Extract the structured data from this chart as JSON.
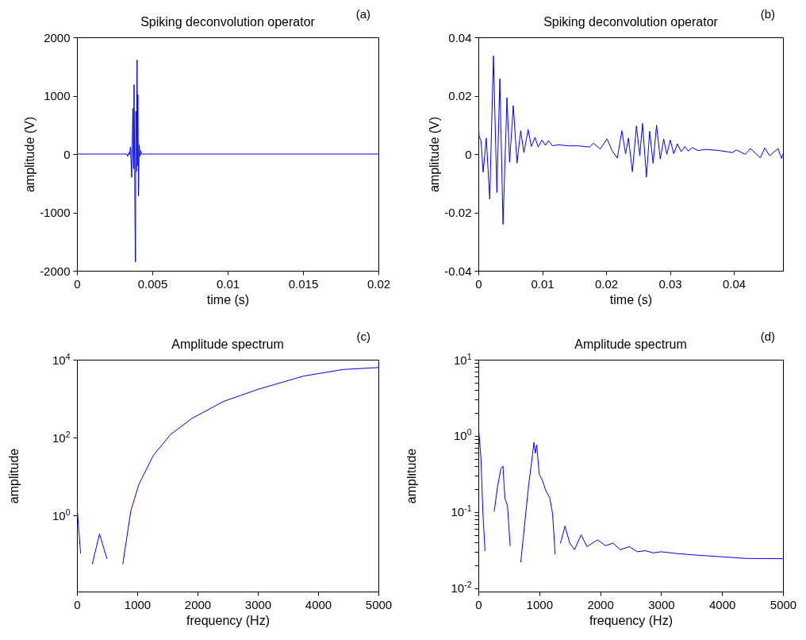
{
  "chart_data": [
    {
      "type": "line",
      "title": "Spiking deconvolution operator",
      "xlabel": "time (s)",
      "ylabel": "amplitude (V)",
      "annotations": [
        "(a)"
      ],
      "x": [
        0,
        0.0033,
        0.00337,
        0.00343,
        0.00349,
        0.00355,
        0.00363,
        0.00371,
        0.00376,
        0.00379,
        0.00385,
        0.00388,
        0.00391,
        0.00394,
        0.00399,
        0.00402,
        0.00404,
        0.00408,
        0.00413,
        0.00418,
        0.00423,
        0.00428,
        0.02
      ],
      "series": [
        {
          "color": "#0000ff",
          "values": [
            0,
            0,
            -40,
            20,
            -10,
            120,
            -400,
            780,
            -250,
            1190,
            -1080,
            -1850,
            730,
            -300,
            1610,
            -200,
            1020,
            -720,
            160,
            -40,
            60,
            0,
            0
          ]
        }
      ],
      "xlim": [
        0,
        0.02
      ],
      "ylim": [
        -2000,
        2000
      ],
      "xticks": [
        0,
        0.005,
        0.01,
        0.015,
        0.02
      ],
      "yticks": [
        -2000,
        -1000,
        0,
        1000,
        2000
      ]
    },
    {
      "type": "line",
      "title": "Spiking deconvolution operator",
      "xlabel": "time (s)",
      "ylabel": "amplitude (V)",
      "annotations": [
        "(b)"
      ],
      "x": [
        0,
        0.00012,
        0.00041,
        0.00075,
        0.00124,
        0.00178,
        0.00236,
        0.0029,
        0.00336,
        0.00386,
        0.00448,
        0.00489,
        0.00547,
        0.00605,
        0.00663,
        0.00713,
        0.00779,
        0.00829,
        0.00887,
        0.00937,
        0.00995,
        0.01049,
        0.01098,
        0.01161,
        0.01244,
        0.01409,
        0.01575,
        0.01741,
        0.01803,
        0.01907,
        0.02015,
        0.02093,
        0.02176,
        0.02247,
        0.02305,
        0.0235,
        0.02412,
        0.02475,
        0.02528,
        0.0257,
        0.02632,
        0.02682,
        0.02736,
        0.0279,
        0.02848,
        0.02902,
        0.02951,
        0.03005,
        0.03059,
        0.03117,
        0.03175,
        0.03233,
        0.03287,
        0.03349,
        0.0344,
        0.03565,
        0.03772,
        0.03979,
        0.04041,
        0.04178,
        0.04261,
        0.04415,
        0.04485,
        0.0456,
        0.04692,
        0.04746,
        0.04767
      ],
      "series": [
        {
          "color": "#0000ff",
          "values": [
            0.0119,
            0.006,
            0.0046,
            -0.0062,
            0.0055,
            -0.0155,
            0.0336,
            -0.0132,
            0.0258,
            -0.0241,
            0.0193,
            -0.0028,
            0.0166,
            -0.0031,
            0.008,
            0.0005,
            0.0084,
            0.0026,
            0.0057,
            0.0024,
            0.0048,
            0.003,
            0.0046,
            0.0028,
            0.0032,
            0.0028,
            0.0028,
            0.0024,
            0.0037,
            0.0017,
            0.0052,
            0.0012,
            -0.0014,
            0.008,
            0.0001,
            0.0055,
            -0.0061,
            0.0096,
            -0.0006,
            0.0105,
            -0.0079,
            0.0078,
            -0.0032,
            0.0099,
            -0.0017,
            0.0051,
            -0.0001,
            0.0048,
            0.0001,
            0.0035,
            0.0008,
            0.0026,
            0.001,
            0.0022,
            0.0012,
            0.0016,
            0.0012,
            0.0005,
            0.0014,
            -0.0001,
            0.0019,
            -0.0013,
            0.0021,
            -0.0006,
            0.0019,
            -0.0015,
            -0.0001
          ]
        }
      ],
      "xlim": [
        0,
        0.0477
      ],
      "ylim": [
        -0.04,
        0.04
      ],
      "xticks": [
        0,
        0.01,
        0.02,
        0.03,
        0.04
      ],
      "yticks": [
        -0.04,
        -0.02,
        0,
        0.02,
        0.04
      ]
    },
    {
      "type": "line",
      "title": "Amplitude spectrum",
      "xlabel": "frequency (Hz)",
      "ylabel": "amplitude",
      "annotations": [
        "(c)"
      ],
      "log": "y",
      "x": [
        0,
        60,
        171,
        255,
        374,
        497,
        645,
        761,
        893,
        1025,
        1268,
        1554,
        1906,
        2434,
        3006,
        3754,
        4414,
        5000
      ],
      "series": [
        {
          "color": "#0000ff",
          "values": [
            1.78,
            0.107,
            null,
            0.057,
            0.335,
            0.078,
            null,
            0.057,
            1.3,
            6.2,
            35,
            121,
            310,
            853,
            1740,
            3790,
            5600,
            6300
          ]
        }
      ],
      "xlim": [
        0,
        5000
      ],
      "ylim": [
        0.0111,
        10000
      ],
      "xticks": [
        0,
        1000,
        2000,
        3000,
        4000,
        5000
      ],
      "yticks": [
        {
          "value": 1,
          "label": "10$^{0}$"
        },
        {
          "value": 100,
          "label": "10$^{2}$"
        },
        {
          "value": 10000,
          "label": "10$^{4}$"
        }
      ]
    },
    {
      "type": "line",
      "title": "Amplitude spectrum",
      "xlabel": "frequency (Hz)",
      "ylabel": "amplitude",
      "annotations": [
        "(d)"
      ],
      "log": "y",
      "x": [
        10,
        43,
        74,
        109,
        165,
        261,
        313,
        370,
        404,
        435,
        478,
        522,
        587,
        696,
        826,
        870,
        913,
        935,
        957,
        1000,
        1043,
        1109,
        1174,
        1217,
        1261,
        1291,
        1348,
        1422,
        1500,
        1578,
        1687,
        1783,
        1957,
        2087,
        2209,
        2326,
        2478,
        2609,
        2739,
        2870,
        3000,
        3261,
        3522,
        3957,
        4391,
        5000
      ],
      "series": [
        {
          "color": "#0000ff",
          "values": [
            1.08,
            0.506,
            0.1,
            0.031,
            null,
            0.102,
            0.21,
            0.37,
            0.4,
            0.152,
            0.12,
            0.036,
            null,
            0.022,
            0.227,
            0.43,
            0.82,
            0.59,
            0.76,
            0.31,
            0.27,
            0.19,
            0.152,
            0.096,
            0.028,
            null,
            0.039,
            0.065,
            0.039,
            0.032,
            0.05,
            0.035,
            0.043,
            0.036,
            0.039,
            0.032,
            0.035,
            0.03,
            0.031,
            0.029,
            0.03,
            0.0284,
            0.0273,
            0.0259,
            0.0245,
            0.0243
          ]
        }
      ],
      "xlim": [
        0,
        5000
      ],
      "ylim": [
        0.009,
        10
      ],
      "xticks": [
        0,
        1000,
        2000,
        3000,
        4000,
        5000
      ],
      "yticks": [
        {
          "value": 0.01,
          "label": "10$^{-2}$"
        },
        {
          "value": 0.02,
          "label": null
        },
        {
          "value": 0.03,
          "label": null
        },
        {
          "value": 0.04,
          "label": null
        },
        {
          "value": 0.05,
          "label": null
        },
        {
          "value": 0.06,
          "label": null
        },
        {
          "value": 0.07,
          "label": null
        },
        {
          "value": 0.08,
          "label": null
        },
        {
          "value": 0.09,
          "label": null
        },
        {
          "value": 0.1,
          "label": "10$^{-1}$"
        },
        {
          "value": 0.2,
          "label": null
        },
        {
          "value": 0.3,
          "label": null
        },
        {
          "value": 0.4,
          "label": null
        },
        {
          "value": 0.5,
          "label": null
        },
        {
          "value": 0.6,
          "label": null
        },
        {
          "value": 0.7,
          "label": null
        },
        {
          "value": 0.8,
          "label": null
        },
        {
          "value": 0.9,
          "label": null
        },
        {
          "value": 1,
          "label": "10$^{0}$"
        },
        {
          "value": 2,
          "label": null
        },
        {
          "value": 3,
          "label": null
        },
        {
          "value": 4,
          "label": null
        },
        {
          "value": 5,
          "label": null
        },
        {
          "value": 6,
          "label": null
        },
        {
          "value": 7,
          "label": null
        },
        {
          "value": 8,
          "label": null
        },
        {
          "value": 9,
          "label": null
        },
        {
          "value": 10,
          "label": "10$^{1}$"
        }
      ]
    }
  ]
}
